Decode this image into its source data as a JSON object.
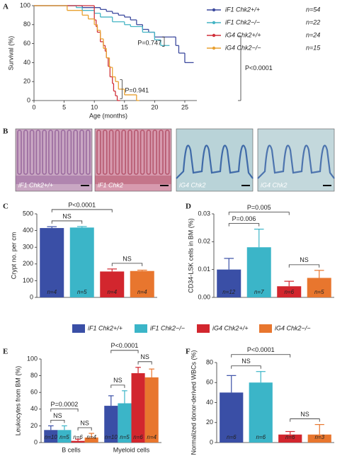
{
  "chart_data": [
    {
      "panel": "A",
      "type": "survival",
      "xlabel": "Age (months)",
      "ylabel": "Survival (%)",
      "xlim": [
        0,
        27
      ],
      "ylim": [
        0,
        100
      ],
      "xticks": [
        0,
        5,
        10,
        15,
        20,
        25
      ],
      "yticks": [
        0,
        20,
        40,
        60,
        80,
        100
      ],
      "series": [
        {
          "name": "iF1 Chk2+/+",
          "n_label": "n=54",
          "color": "#3d4a9e",
          "x": [
            0,
            8,
            11,
            12,
            13,
            14,
            15,
            16,
            17,
            18,
            19,
            20,
            23,
            23.5,
            24,
            25,
            26
          ],
          "values": [
            100,
            98,
            96,
            94,
            92,
            90,
            88,
            85,
            80,
            75,
            72,
            67,
            67,
            58,
            50,
            40,
            40
          ]
        },
        {
          "name": "iF1 Chk2−/−",
          "n_label": "n=22",
          "color": "#44b4c4",
          "x": [
            0,
            7,
            8,
            10,
            11,
            13,
            15,
            16,
            18,
            20,
            21,
            22
          ],
          "values": [
            100,
            98,
            95,
            92,
            88,
            83,
            80,
            78,
            72,
            64,
            58,
            58
          ]
        },
        {
          "name": "iG4 Chk2+/+",
          "n_label": "n=24",
          "color": "#d0303a",
          "x": [
            0,
            10,
            10.3,
            10.5,
            11,
            11.5,
            11.8,
            12,
            12.3,
            12.6,
            13,
            13.2,
            13.5,
            13.8
          ],
          "values": [
            100,
            85,
            78,
            72,
            62,
            58,
            52,
            45,
            36,
            25,
            18,
            10,
            5,
            0
          ]
        },
        {
          "name": "iG4 Chk2−/−",
          "n_label": "n=15",
          "color": "#e8a030",
          "x": [
            0,
            5.5,
            8,
            9,
            10,
            10.5,
            11,
            11.5,
            12,
            12.5,
            13,
            13.5,
            14,
            15,
            17
          ],
          "values": [
            100,
            95,
            90,
            86,
            80,
            74,
            65,
            55,
            45,
            35,
            25,
            20,
            12,
            6,
            0
          ]
        }
      ],
      "annotations": [
        "P=0.747",
        "P=0.941",
        "P<0.0001"
      ]
    },
    {
      "panel": "C",
      "type": "bar",
      "ylabel": "Crypt no. per cm",
      "ylim": [
        0,
        500
      ],
      "yticks": [
        0,
        100,
        200,
        300,
        400,
        500
      ],
      "values": [
        415,
        418,
        155,
        158
      ],
      "errors": [
        8,
        6,
        15,
        5
      ],
      "n_labels": [
        "n=4",
        "n=5",
        "n=4",
        "n=4"
      ],
      "brackets": [
        {
          "from": 0,
          "to": 1,
          "label": "NS"
        },
        {
          "from": 0,
          "to": 2,
          "label": "P<0.0001"
        },
        {
          "from": 2,
          "to": 3,
          "label": "NS"
        }
      ]
    },
    {
      "panel": "D",
      "type": "bar",
      "ylabel": "CD34-LSK cells in BM (%)",
      "ylim": [
        0,
        0.03
      ],
      "yticks": [
        {
          "value": 0,
          "label": "0.00"
        },
        {
          "value": 0.01,
          "label": "0.01"
        },
        {
          "value": 0.02,
          "label": "0.02"
        },
        {
          "value": 0.03,
          "label": "0.03"
        }
      ],
      "values": [
        0.01,
        0.018,
        0.004,
        0.007
      ],
      "errors": [
        0.004,
        0.0065,
        0.0018,
        0.0027
      ],
      "n_labels": [
        "n=12",
        "n=7",
        "n=6",
        "n=5"
      ],
      "brackets": [
        {
          "from": 0,
          "to": 1,
          "label": "P=0.006"
        },
        {
          "from": 0,
          "to": 2,
          "label": "P=0.005"
        },
        {
          "from": 2,
          "to": 3,
          "label": "NS"
        }
      ]
    },
    {
      "panel": "E",
      "type": "grouped_bar",
      "ylabel": "Leukocytes from BM (%)",
      "ylim": [
        0,
        100
      ],
      "yticks": [
        0,
        20,
        40,
        60,
        80,
        100
      ],
      "categories": [
        "B cells",
        "Myeloid cells"
      ],
      "series": [
        {
          "values": [
            15,
            44
          ],
          "errors": [
            5,
            12
          ],
          "n_labels": [
            "n=10",
            "n=10"
          ]
        },
        {
          "values": [
            15,
            47
          ],
          "errors": [
            5,
            15
          ],
          "n_labels": [
            "n=5",
            "n=5"
          ]
        },
        {
          "values": [
            2,
            83
          ],
          "errors": [
            2,
            7
          ],
          "n_labels": [
            "n=6",
            "n=6"
          ]
        },
        {
          "values": [
            6,
            78
          ],
          "errors": [
            5,
            10
          ],
          "n_labels": [
            "n=4",
            "n=4"
          ]
        }
      ],
      "brackets": [
        {
          "category": 0,
          "from": 0,
          "to": 1,
          "label": "NS"
        },
        {
          "category": 0,
          "from": 0,
          "to": 2,
          "label": "P=0.0002"
        },
        {
          "category": 0,
          "from": 2,
          "to": 3,
          "label": "NS"
        },
        {
          "category": 1,
          "from": 0,
          "to": 1,
          "label": "NS"
        },
        {
          "category": 1,
          "from": 0,
          "to": 2,
          "label": "P<0.0001"
        },
        {
          "category": 1,
          "from": 2,
          "to": 3,
          "label": "NS"
        }
      ]
    },
    {
      "panel": "F",
      "type": "bar",
      "ylabel": "Normalized donor-derived WBCs (%)",
      "ylim": [
        0,
        80
      ],
      "yticks": [
        0,
        20,
        40,
        60,
        80
      ],
      "values": [
        50,
        60,
        8,
        8
      ],
      "errors": [
        17,
        11,
        3,
        10
      ],
      "n_labels": [
        "n=6",
        "n=6",
        "n=6",
        "n=3"
      ],
      "brackets": [
        {
          "from": 0,
          "to": 1,
          "label": "NS"
        },
        {
          "from": 0,
          "to": 2,
          "label": "P<0.0001"
        },
        {
          "from": 2,
          "to": 3,
          "label": "NS"
        }
      ]
    }
  ],
  "images": {
    "panel": "B",
    "captions": [
      "iF1 Chk2+/+",
      "iF1 Chk2",
      "iG4 Chk2",
      "iG4 Chk2"
    ]
  },
  "legend": [
    {
      "name": "iF1 Chk2+/+",
      "color": "#3a4fa6"
    },
    {
      "name": "iF1 Chk2−/−",
      "color": "#3bb5c8"
    },
    {
      "name": "iG4 Chk2+/+",
      "color": "#d2262e"
    },
    {
      "name": "iG4 Chk2−/−",
      "color": "#e8762e"
    }
  ]
}
